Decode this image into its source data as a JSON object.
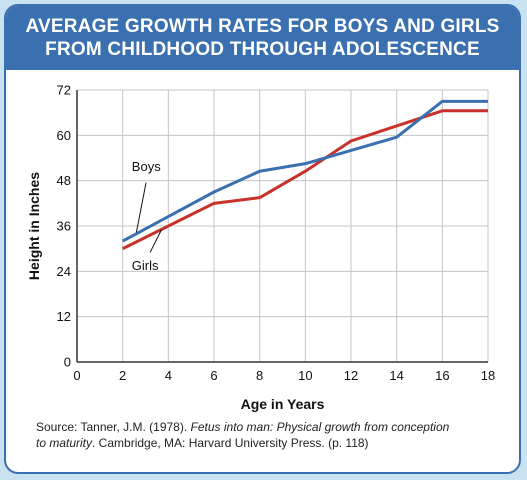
{
  "banner": {
    "line1": "AVERAGE GROWTH RATES FOR BOYS AND GIRLS",
    "line2": "FROM CHILDHOOD THROUGH ADOLESCENCE"
  },
  "source": {
    "prefix": "Source: Tanner, J.M. (1978). ",
    "title_part1": "Fetus into man: Physical growth from conception",
    "title_part2": "to maturity",
    "suffix": ". Cambridge, MA: Harvard University Press. (p. 118)"
  },
  "colors": {
    "banner": "#3a6fb0",
    "boys": "#3a6fb0",
    "girls": "#c8322a",
    "background": "#c9e2f1"
  },
  "chart_data": {
    "type": "line",
    "xlabel": "Age in Years",
    "ylabel": "Height in Inches",
    "xlim": [
      0,
      18
    ],
    "ylim": [
      0,
      72
    ],
    "x_ticks": [
      0,
      2,
      4,
      6,
      8,
      10,
      12,
      14,
      16,
      18
    ],
    "y_ticks": [
      0,
      12,
      24,
      36,
      48,
      60,
      72
    ],
    "grid": true,
    "series": [
      {
        "name": "Boys",
        "x": [
          2,
          4,
          6,
          8,
          10,
          12,
          14,
          16,
          18
        ],
        "values": [
          32,
          38.5,
          45,
          50.5,
          52.5,
          56,
          59.5,
          69,
          69
        ]
      },
      {
        "name": "Girls",
        "x": [
          2,
          4,
          6,
          8,
          10,
          12,
          14,
          16,
          18
        ],
        "values": [
          30,
          36,
          42,
          43.5,
          50.5,
          58.5,
          62.5,
          66.5,
          66.5
        ]
      }
    ]
  }
}
